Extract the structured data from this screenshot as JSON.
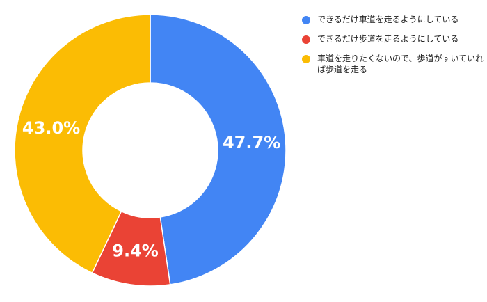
{
  "chart_data": {
    "type": "pie",
    "donut": true,
    "legend_position": "right",
    "slices": [
      {
        "label": "できるだけ車道を走るようにしている",
        "value": 47.7,
        "display": "47.7%",
        "color": "#4285f4"
      },
      {
        "label": "できるだけ歩道を走るようにしている",
        "value": 9.4,
        "display": "9.4%",
        "color": "#ea4335"
      },
      {
        "label": "車道を走りたくないので、歩道がすいていれば歩道を走る",
        "value": 43.0,
        "display": "43.0%",
        "color": "#fbbc04"
      }
    ]
  }
}
